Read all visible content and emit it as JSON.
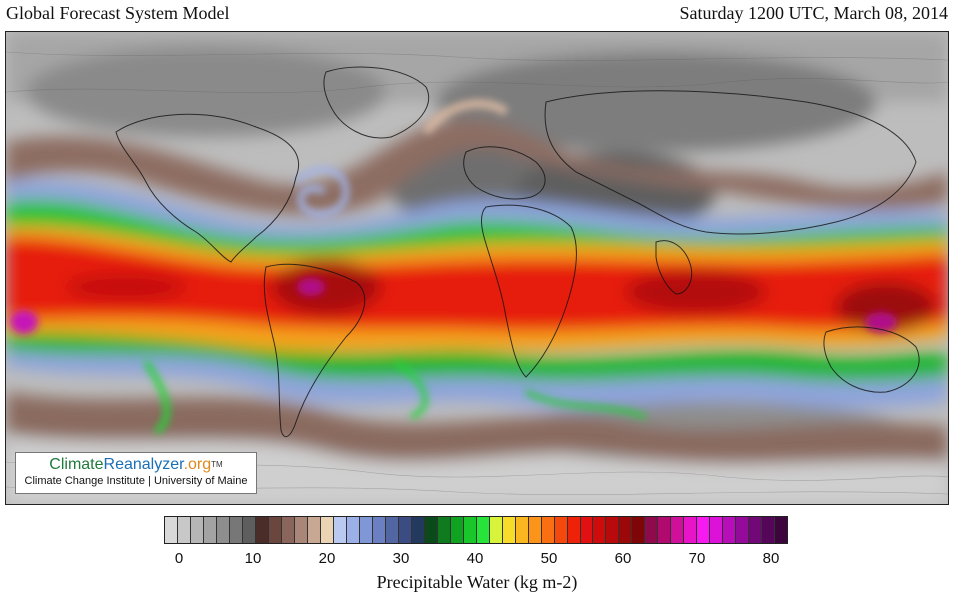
{
  "header": {
    "model_title": "Global Forecast System Model",
    "valid_time": "Saturday 1200 UTC, March 08, 2014"
  },
  "credit": {
    "brand_part1": "Climate",
    "brand_part2": "Reanalyzer",
    "brand_part3": ".org",
    "trademark": "TM",
    "organization": "Climate Change Institute | University of Maine"
  },
  "legend": {
    "title": "Precipitable Water (kg m-2)",
    "min": 0,
    "max": 80,
    "tick_labels": [
      "0",
      "10",
      "20",
      "30",
      "40",
      "50",
      "60",
      "70",
      "80"
    ],
    "colors": [
      "#d9d9d9",
      "#c8c8c8",
      "#b6b6b6",
      "#a3a3a3",
      "#8e8e8e",
      "#777777",
      "#5e5e5e",
      "#4a2c28",
      "#6b463f",
      "#8a655b",
      "#a98678",
      "#c8a893",
      "#ebd4b4",
      "#b9c9f0",
      "#9bb0e6",
      "#8097d6",
      "#6a80c2",
      "#5166a3",
      "#3a4c82",
      "#233a5e",
      "#0b4a1a",
      "#0f7a1e",
      "#10a321",
      "#1ac72b",
      "#26e43a",
      "#d8f43a",
      "#f8dc2a",
      "#fbb71f",
      "#fb9418",
      "#f96f12",
      "#f4480c",
      "#ee2208",
      "#e21010",
      "#cf0c0c",
      "#b80a0a",
      "#9c0808",
      "#7e0606",
      "#8e0a4a",
      "#b00a6e",
      "#d0109a",
      "#e814c8",
      "#f61af0",
      "#dc12d8",
      "#b80eba",
      "#940a9a",
      "#720878",
      "#560658",
      "#3e043e"
    ]
  }
}
